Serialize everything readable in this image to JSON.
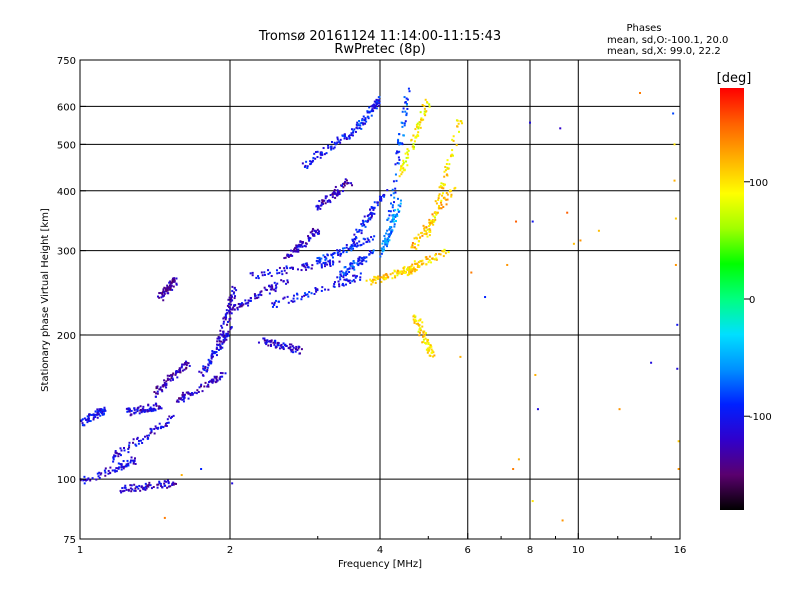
{
  "chart_data": {
    "type": "scatter",
    "title": "Tromsø 20161124 11:14:00-11:15:43",
    "subtitle": "RwPretec (8p)",
    "xlabel": "Frequency [MHz]",
    "ylabel": "Stationary phase Virtual Height [km]",
    "xscale": "log",
    "yscale": "log",
    "xlim": [
      1,
      16
    ],
    "ylim": [
      75,
      750
    ],
    "xticks": [
      1,
      2,
      4,
      6,
      8,
      10,
      16
    ],
    "xtick_labels": [
      "1",
      "2",
      "4",
      "6",
      "8",
      "10",
      "16"
    ],
    "yticks": [
      75,
      100,
      200,
      300,
      400,
      500,
      600,
      750
    ],
    "ytick_labels": [
      "75",
      "100",
      "200",
      "300",
      "400",
      "500",
      "600",
      "750"
    ],
    "xgrid": [
      1,
      2,
      4,
      6,
      8,
      10,
      16
    ],
    "ygrid": [
      75,
      100,
      200,
      300,
      400,
      500,
      600,
      750
    ],
    "grid": true,
    "legend": {
      "title": "Phases",
      "line1": "mean, sd,O:-100.1, 20.0",
      "line2": "mean, sd,X: 99.0, 22.2",
      "placement": "top-right"
    },
    "colorbar": {
      "label": "[deg]",
      "min": -180,
      "max": 180,
      "ticks": [
        100,
        0,
        -100
      ],
      "tick_labels": [
        "100",
        "0",
        "-100"
      ],
      "stops": [
        "#000000",
        "#5a006e",
        "#3000cc",
        "#0020ff",
        "#0090ff",
        "#00e0ff",
        "#00ff80",
        "#00ff00",
        "#a0ff00",
        "#ffff00",
        "#ffb000",
        "#ff6000",
        "#ff0000"
      ]
    },
    "traces": [
      {
        "x": [
          1.0,
          1.12
        ],
        "y": [
          130,
          140
        ],
        "phase": -105
      },
      {
        "x": [
          1.0,
          1.3
        ],
        "y": [
          98,
          110
        ],
        "phase": -110
      },
      {
        "x": [
          1.15,
          1.55
        ],
        "y": [
          110,
          135
        ],
        "phase": -110
      },
      {
        "x": [
          1.25,
          1.45
        ],
        "y": [
          138,
          142
        ],
        "phase": -115
      },
      {
        "x": [
          1.4,
          1.65
        ],
        "y": [
          150,
          175
        ],
        "phase": -130
      },
      {
        "x": [
          1.55,
          1.95
        ],
        "y": [
          145,
          165
        ],
        "phase": -125
      },
      {
        "x": [
          1.75,
          2.0
        ],
        "y": [
          165,
          205
        ],
        "phase": -110
      },
      {
        "x": [
          1.9,
          2.05
        ],
        "y": [
          190,
          250
        ],
        "phase": -120
      },
      {
        "x": [
          1.2,
          1.55
        ],
        "y": [
          95,
          98
        ],
        "phase": -120
      },
      {
        "x": [
          1.45,
          1.55
        ],
        "y": [
          240,
          260
        ],
        "phase": -130
      },
      {
        "x": [
          2.0,
          2.6
        ],
        "y": [
          225,
          260
        ],
        "phase": -115
      },
      {
        "x": [
          2.4,
          3.7
        ],
        "y": [
          230,
          265
        ],
        "phase": -100
      },
      {
        "x": [
          2.2,
          3.3
        ],
        "y": [
          265,
          285
        ],
        "phase": -110
      },
      {
        "x": [
          3.3,
          3.9
        ],
        "y": [
          265,
          300
        ],
        "phase": -90
      },
      {
        "x": [
          3.0,
          3.9
        ],
        "y": [
          285,
          320
        ],
        "phase": -95
      },
      {
        "x": [
          3.5,
          4.1
        ],
        "y": [
          310,
          400
        ],
        "phase": -100
      },
      {
        "x": [
          3.0,
          3.5
        ],
        "y": [
          370,
          420
        ],
        "phase": -125
      },
      {
        "x": [
          2.6,
          3.0
        ],
        "y": [
          290,
          330
        ],
        "phase": -120
      },
      {
        "x": [
          2.8,
          3.6
        ],
        "y": [
          450,
          540
        ],
        "phase": -100
      },
      {
        "x": [
          3.6,
          4.0
        ],
        "y": [
          540,
          620
        ],
        "phase": -95
      },
      {
        "x": [
          4.1,
          4.55
        ],
        "y": [
          300,
          650
        ],
        "phase": -80
      },
      {
        "x": [
          4.0,
          4.4
        ],
        "y": [
          290,
          380
        ],
        "phase": -60
      },
      {
        "x": [
          3.8,
          4.8
        ],
        "y": [
          258,
          275
        ],
        "phase": 110
      },
      {
        "x": [
          4.3,
          5.5
        ],
        "y": [
          268,
          300
        ],
        "phase": 105
      },
      {
        "x": [
          4.6,
          5.6
        ],
        "y": [
          300,
          400
        ],
        "phase": 115
      },
      {
        "x": [
          5.0,
          5.8
        ],
        "y": [
          320,
          560
        ],
        "phase": 100
      },
      {
        "x": [
          4.4,
          5.0
        ],
        "y": [
          430,
          620
        ],
        "phase": 90
      },
      {
        "x": [
          4.7,
          5.1
        ],
        "y": [
          220,
          180
        ],
        "phase": 100
      },
      {
        "x": [
          2.3,
          2.8
        ],
        "y": [
          195,
          185
        ],
        "phase": -115
      }
    ],
    "scatter_points": [
      {
        "x": 7.5,
        "y": 345,
        "phase": 150
      },
      {
        "x": 7.2,
        "y": 280,
        "phase": 130
      },
      {
        "x": 7.4,
        "y": 105,
        "phase": 140
      },
      {
        "x": 7.6,
        "y": 110,
        "phase": 120
      },
      {
        "x": 6.1,
        "y": 270,
        "phase": 140
      },
      {
        "x": 8.0,
        "y": 555,
        "phase": -110
      },
      {
        "x": 8.1,
        "y": 345,
        "phase": -100
      },
      {
        "x": 8.2,
        "y": 165,
        "phase": 120
      },
      {
        "x": 8.3,
        "y": 140,
        "phase": -110
      },
      {
        "x": 9.2,
        "y": 540,
        "phase": -120
      },
      {
        "x": 9.5,
        "y": 360,
        "phase": 150
      },
      {
        "x": 9.8,
        "y": 310,
        "phase": 115
      },
      {
        "x": 10.1,
        "y": 315,
        "phase": 130
      },
      {
        "x": 11.0,
        "y": 330,
        "phase": 115
      },
      {
        "x": 12.1,
        "y": 140,
        "phase": 130
      },
      {
        "x": 13.3,
        "y": 640,
        "phase": 140
      },
      {
        "x": 14.0,
        "y": 175,
        "phase": -110
      },
      {
        "x": 15.5,
        "y": 580,
        "phase": -80
      },
      {
        "x": 15.6,
        "y": 500,
        "phase": 100
      },
      {
        "x": 15.6,
        "y": 420,
        "phase": 120
      },
      {
        "x": 15.7,
        "y": 350,
        "phase": 110
      },
      {
        "x": 15.7,
        "y": 280,
        "phase": 130
      },
      {
        "x": 15.8,
        "y": 210,
        "phase": -100
      },
      {
        "x": 15.8,
        "y": 170,
        "phase": -110
      },
      {
        "x": 15.9,
        "y": 120,
        "phase": 110
      },
      {
        "x": 15.9,
        "y": 105,
        "phase": 130
      },
      {
        "x": 6.5,
        "y": 240,
        "phase": -90
      },
      {
        "x": 5.8,
        "y": 180,
        "phase": 120
      },
      {
        "x": 8.1,
        "y": 90,
        "phase": 100
      },
      {
        "x": 9.3,
        "y": 82,
        "phase": 130
      },
      {
        "x": 1.48,
        "y": 83,
        "phase": 140
      },
      {
        "x": 1.6,
        "y": 102,
        "phase": 120
      },
      {
        "x": 1.75,
        "y": 105,
        "phase": -90
      },
      {
        "x": 2.02,
        "y": 98,
        "phase": -110
      }
    ]
  }
}
